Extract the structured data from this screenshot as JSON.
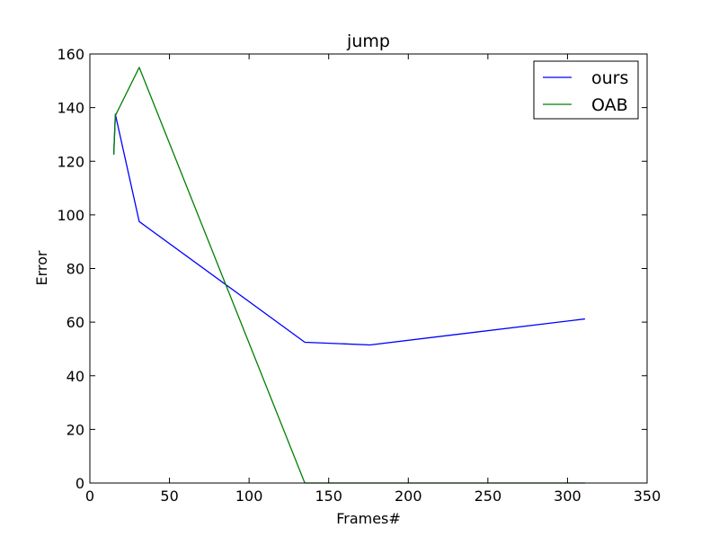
{
  "chart_data": {
    "type": "line",
    "title": "jump",
    "xlabel": "Frames#",
    "ylabel": "Error",
    "xlim": [
      0,
      350
    ],
    "ylim": [
      0,
      160
    ],
    "xticks": [
      0,
      50,
      100,
      150,
      200,
      250,
      300,
      350
    ],
    "yticks": [
      0,
      20,
      40,
      60,
      80,
      100,
      120,
      140,
      160
    ],
    "grid": false,
    "legend_position": "top-right",
    "series": [
      {
        "name": "ours",
        "color": "#0000ff",
        "x": [
          15,
          16,
          31,
          135,
          176,
          311
        ],
        "y": [
          122.5,
          137.5,
          97.5,
          52.5,
          51.5,
          61.2
        ]
      },
      {
        "name": "OAB",
        "color": "#008000",
        "x": [
          15,
          16,
          31,
          135,
          176,
          311
        ],
        "y": [
          122.5,
          137.0,
          155.0,
          0,
          0,
          0
        ]
      }
    ]
  }
}
